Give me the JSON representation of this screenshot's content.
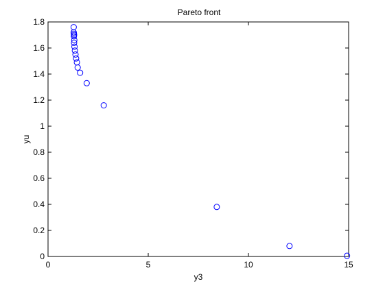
{
  "chart_data": {
    "type": "scatter",
    "title": "Pareto front",
    "xlabel": "y3",
    "ylabel": "yu",
    "xlim": [
      0,
      15
    ],
    "ylim": [
      0,
      1.8
    ],
    "xticks": [
      0,
      5,
      10,
      15
    ],
    "yticks": [
      0,
      0.2,
      0.4,
      0.6,
      0.8,
      1,
      1.2,
      1.4,
      1.6,
      1.8
    ],
    "grid": false,
    "marker": "open-circle",
    "marker_color": "#0000ff",
    "series": [
      {
        "x": [
          1.28,
          1.28,
          1.29,
          1.3,
          1.29,
          1.31,
          1.3,
          1.32,
          1.34,
          1.37,
          1.4,
          1.44,
          1.48,
          1.6,
          1.93,
          2.78,
          8.42,
          12.05,
          14.92
        ],
        "y": [
          1.76,
          1.72,
          1.71,
          1.7,
          1.69,
          1.66,
          1.64,
          1.61,
          1.58,
          1.55,
          1.52,
          1.49,
          1.45,
          1.41,
          1.33,
          1.16,
          0.38,
          0.08,
          0.005
        ]
      }
    ]
  }
}
